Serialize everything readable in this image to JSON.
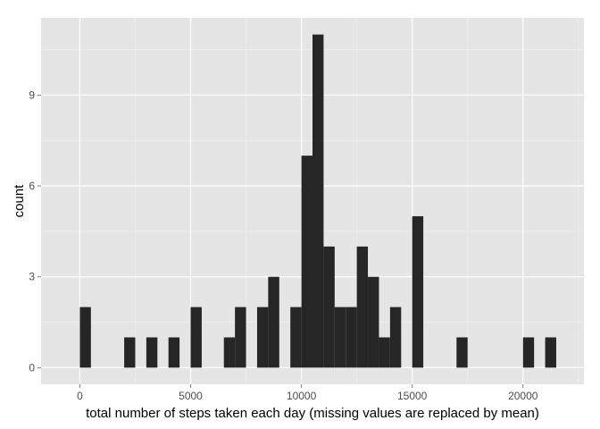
{
  "chart_data": {
    "type": "bar",
    "binwidth": 500,
    "xlabel": "total number of steps taken each day (missing values are replaced by mean)",
    "ylabel": "count",
    "xlim": [
      -1750,
      22750
    ],
    "ylim": [
      -0.55,
      11.55
    ],
    "x_ticks": [
      0,
      5000,
      10000,
      15000,
      20000
    ],
    "x_tick_labels": [
      "0",
      "5000",
      "10000",
      "15000",
      "20000"
    ],
    "y_ticks": [
      0,
      3,
      6,
      9
    ],
    "y_tick_labels": [
      "0",
      "3",
      "6",
      "9"
    ],
    "grid": true,
    "bins": [
      {
        "x": 0,
        "count": 2
      },
      {
        "x": 2000,
        "count": 1
      },
      {
        "x": 3000,
        "count": 1
      },
      {
        "x": 4000,
        "count": 1
      },
      {
        "x": 5000,
        "count": 2
      },
      {
        "x": 6500,
        "count": 1
      },
      {
        "x": 7000,
        "count": 2
      },
      {
        "x": 8000,
        "count": 2
      },
      {
        "x": 8500,
        "count": 3
      },
      {
        "x": 9500,
        "count": 2
      },
      {
        "x": 10000,
        "count": 7
      },
      {
        "x": 10500,
        "count": 11
      },
      {
        "x": 11000,
        "count": 4
      },
      {
        "x": 11500,
        "count": 2
      },
      {
        "x": 12000,
        "count": 2
      },
      {
        "x": 12500,
        "count": 4
      },
      {
        "x": 13000,
        "count": 3
      },
      {
        "x": 13500,
        "count": 1
      },
      {
        "x": 14000,
        "count": 2
      },
      {
        "x": 15000,
        "count": 5
      },
      {
        "x": 17000,
        "count": 1
      },
      {
        "x": 20000,
        "count": 1
      },
      {
        "x": 21000,
        "count": 1
      }
    ],
    "colors": {
      "panel": "#e5e5e5",
      "grid_major": "#ffffff",
      "grid_minor": "#f2f2f2",
      "bar": "#262626",
      "tick_text": "#4d4d4d",
      "title_text": "#000000"
    }
  }
}
